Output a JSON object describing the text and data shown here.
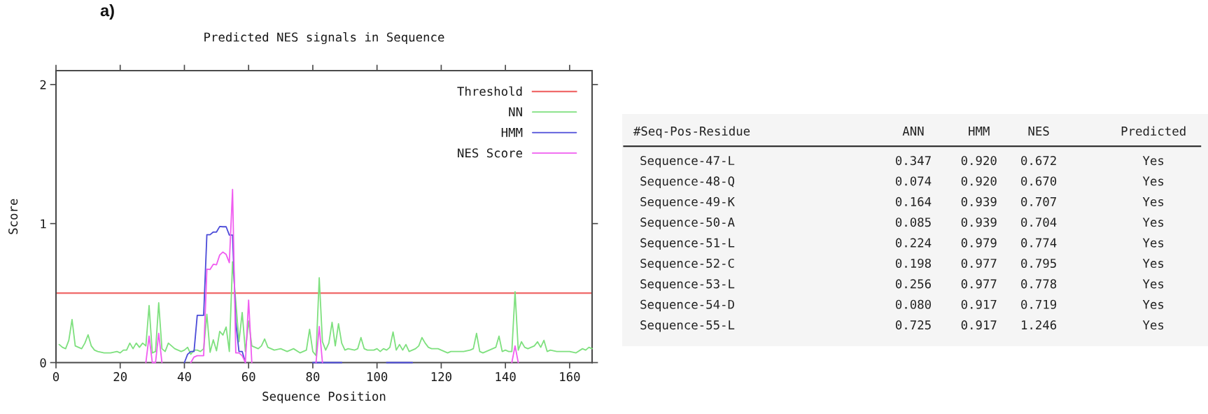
{
  "chart_data": [
    {
      "type": "line",
      "title": "Predicted NES signals in Sequence",
      "xlabel": "Sequence Position",
      "ylabel": "Score",
      "annotations": [
        "a)"
      ],
      "xlim": [
        0,
        167
      ],
      "ylim": [
        0,
        2.1
      ],
      "xticks": [
        0,
        20,
        40,
        60,
        80,
        100,
        120,
        140,
        160
      ],
      "yticks": [
        0,
        1,
        2
      ],
      "legend": "top right",
      "ref_lines": [
        {
          "axis": "y",
          "value": 0.5,
          "label": "Threshold",
          "color": "#f06a6a"
        }
      ],
      "series": [
        {
          "name": "NN",
          "color": "#7ee07e",
          "x": [
            1,
            2,
            3,
            4,
            5,
            6,
            7,
            8,
            9,
            10,
            11,
            12,
            13,
            15,
            17,
            19,
            20,
            21,
            22,
            23,
            24,
            25,
            26,
            27,
            28,
            29,
            30,
            31,
            32,
            33,
            34,
            35,
            36,
            37,
            38,
            39,
            40,
            41,
            42,
            43,
            44,
            45,
            46,
            47,
            48,
            49,
            50,
            51,
            52,
            53,
            54,
            55,
            56,
            57,
            58,
            59,
            60,
            61,
            62,
            63,
            64,
            65,
            66,
            68,
            70,
            72,
            74,
            76,
            77,
            78,
            79,
            80,
            81,
            82,
            83,
            84,
            85,
            86,
            87,
            88,
            89,
            90,
            91,
            93,
            94,
            95,
            96,
            97,
            99,
            100,
            101,
            102,
            103,
            104,
            105,
            106,
            107,
            108,
            109,
            110,
            111,
            112,
            113,
            114,
            115,
            116,
            117,
            118,
            119,
            121,
            122,
            123,
            125,
            127,
            129,
            130,
            131,
            132,
            133,
            134,
            135,
            136,
            137,
            138,
            139,
            140,
            141,
            142,
            143,
            144,
            145,
            146,
            147,
            149,
            150,
            151,
            152,
            153,
            154,
            156,
            158,
            160,
            162,
            164,
            165,
            166,
            167
          ],
          "values": [
            0.13,
            0.11,
            0.1,
            0.16,
            0.31,
            0.12,
            0.11,
            0.1,
            0.14,
            0.2,
            0.12,
            0.09,
            0.08,
            0.07,
            0.07,
            0.08,
            0.07,
            0.09,
            0.09,
            0.14,
            0.1,
            0.14,
            0.11,
            0.14,
            0.12,
            0.41,
            0.07,
            0.08,
            0.43,
            0.1,
            0.08,
            0.14,
            0.12,
            0.1,
            0.09,
            0.08,
            0.09,
            0.11,
            0.06,
            0.09,
            0.09,
            0.08,
            0.1,
            0.347,
            0.074,
            0.164,
            0.085,
            0.224,
            0.198,
            0.256,
            0.08,
            0.725,
            0.44,
            0.15,
            0.36,
            0.08,
            0.3,
            0.12,
            0.11,
            0.1,
            0.12,
            0.17,
            0.11,
            0.09,
            0.1,
            0.08,
            0.1,
            0.07,
            0.08,
            0.09,
            0.24,
            0.08,
            0.05,
            0.61,
            0.15,
            0.09,
            0.14,
            0.29,
            0.12,
            0.28,
            0.14,
            0.09,
            0.1,
            0.09,
            0.1,
            0.18,
            0.1,
            0.09,
            0.09,
            0.1,
            0.08,
            0.1,
            0.09,
            0.11,
            0.22,
            0.09,
            0.13,
            0.09,
            0.13,
            0.08,
            0.09,
            0.1,
            0.12,
            0.18,
            0.14,
            0.11,
            0.1,
            0.1,
            0.1,
            0.08,
            0.07,
            0.08,
            0.08,
            0.08,
            0.09,
            0.1,
            0.21,
            0.08,
            0.07,
            0.08,
            0.09,
            0.1,
            0.11,
            0.19,
            0.08,
            0.09,
            0.08,
            0.08,
            0.51,
            0.09,
            0.15,
            0.11,
            0.1,
            0.12,
            0.15,
            0.11,
            0.16,
            0.08,
            0.09,
            0.08,
            0.08,
            0.08,
            0.07,
            0.1,
            0.09,
            0.11,
            0.1
          ]
        },
        {
          "name": "HMM",
          "color": "#4b4bd8",
          "x": [
            40,
            41,
            42,
            43,
            44,
            45,
            46,
            47,
            48,
            49,
            50,
            51,
            52,
            53,
            54,
            55,
            56,
            57,
            58,
            59,
            70,
            80,
            89,
            95,
            103,
            111
          ],
          "values": [
            0,
            0.06,
            0.08,
            0.08,
            0.34,
            0.34,
            0.34,
            0.92,
            0.92,
            0.939,
            0.939,
            0.979,
            0.977,
            0.977,
            0.917,
            0.917,
            0.29,
            0.08,
            0.08,
            0,
            null,
            0,
            0,
            null,
            0,
            0
          ]
        },
        {
          "name": "NES Score",
          "color": "#f05cf0",
          "x": [
            28,
            29,
            30,
            31,
            32,
            33,
            36,
            42,
            43,
            44,
            45,
            46,
            47,
            48,
            49,
            50,
            51,
            52,
            53,
            54,
            55,
            56,
            57,
            58,
            59,
            60,
            61,
            70,
            81,
            82,
            83,
            100,
            142,
            143,
            144
          ],
          "values": [
            0,
            0.19,
            0,
            0,
            0.21,
            0,
            null,
            0,
            0.04,
            0.05,
            0.05,
            0.05,
            0.672,
            0.67,
            0.707,
            0.704,
            0.774,
            0.795,
            0.778,
            0.719,
            1.246,
            0.07,
            0.07,
            0.05,
            0,
            0.45,
            0,
            null,
            0,
            0.26,
            0,
            null,
            0,
            0.12,
            0
          ]
        }
      ]
    },
    {
      "type": "other",
      "ylabel": "#Seq-Pos-Residue",
      "categories": [
        "ANN",
        "HMM",
        "NES",
        "Predicted"
      ],
      "y_categories": [
        "Sequence-47-L",
        "Sequence-48-Q",
        "Sequence-49-K",
        "Sequence-50-A",
        "Sequence-51-L",
        "Sequence-52-C",
        "Sequence-53-L",
        "Sequence-54-D",
        "Sequence-55-L"
      ],
      "cell_labels": [
        [
          "0.347",
          "0.920",
          "0.672",
          "Yes"
        ],
        [
          "0.074",
          "0.920",
          "0.670",
          "Yes"
        ],
        [
          "0.164",
          "0.939",
          "0.707",
          "Yes"
        ],
        [
          "0.085",
          "0.939",
          "0.704",
          "Yes"
        ],
        [
          "0.224",
          "0.979",
          "0.774",
          "Yes"
        ],
        [
          "0.198",
          "0.977",
          "0.795",
          "Yes"
        ],
        [
          "0.256",
          "0.977",
          "0.778",
          "Yes"
        ],
        [
          "0.080",
          "0.917",
          "0.719",
          "Yes"
        ],
        [
          "0.725",
          "0.917",
          "1.246",
          "Yes"
        ]
      ]
    }
  ]
}
